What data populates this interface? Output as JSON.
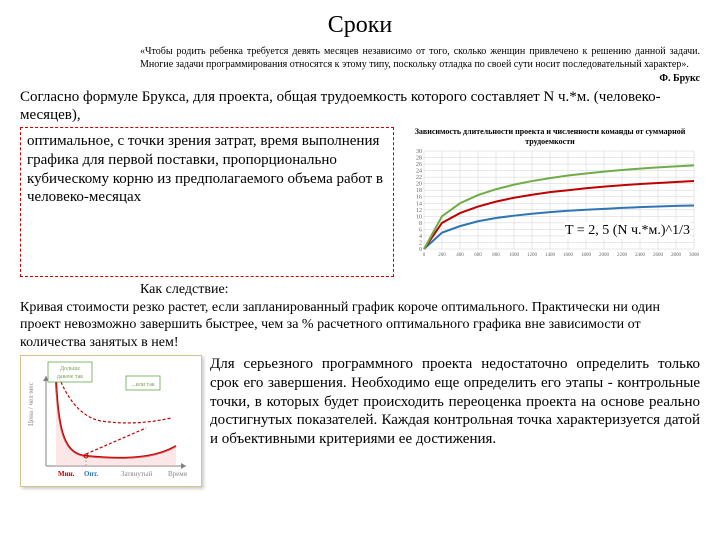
{
  "title": "Сроки",
  "quote": "«Чтобы родить ребенка требуется девять месяцев независимо от того, сколько женщин привлечено к решению данной задачи. Многие задачи программирования относятся к этому типу, поскольку отладка по своей сути носит последовательный характер».",
  "quote_author": "Ф. Брукс",
  "intro": "Согласно формуле Брукса, для проекта, общая трудоемкость которого составляет N ч.*м. (человеко-месяцев),",
  "box_text": "оптимальное, с точки зрения затрат, время выполнения графика для первой поставки, пропорционально кубическому корню из предполагаемого объема работ в человеко-месяцах",
  "chart1": {
    "title": "Зависимость длительности проекта и численности команды от суммарной трудоемкости",
    "ylim": [
      0,
      30
    ],
    "yticks": [
      0,
      2,
      4,
      6,
      8,
      10,
      12,
      14,
      16,
      18,
      20,
      22,
      24,
      26,
      28,
      30
    ],
    "xlim": [
      0,
      3000
    ],
    "xtick_step": 200,
    "series": [
      {
        "color": "#2e75b6",
        "values": [
          0,
          5,
          7,
          8.5,
          9.5,
          10.2,
          10.8,
          11.3,
          11.7,
          12,
          12.3,
          12.6,
          12.8,
          13,
          13.2,
          13.3
        ]
      },
      {
        "color": "#c00000",
        "values": [
          0,
          8,
          11,
          13,
          14.5,
          15.7,
          16.6,
          17.4,
          18,
          18.6,
          19.1,
          19.5,
          19.9,
          20.2,
          20.5,
          20.8
        ]
      },
      {
        "color": "#70ad47",
        "values": [
          0,
          10,
          14,
          16.5,
          18.3,
          19.7,
          20.8,
          21.7,
          22.5,
          23.1,
          23.7,
          24.2,
          24.6,
          25,
          25.3,
          25.6
        ]
      }
    ],
    "grid_color": "#d0d0d0",
    "bg": "#ffffff"
  },
  "formula": "T = 2, 5 (N ч.*м.)^1/3",
  "consequence_head": "Как следствие:",
  "consequence_body": "Кривая стоимости резко растет, если запланированный график короче оптимального. Практически ни один проект невозможно завершить быстрее, чем за % расчетного оптимального графика вне зависимости от количества занятых в нем!",
  "chart2": {
    "bg": "#ffffff",
    "axis_color": "#808080",
    "curve_color": "#c00000",
    "fill_color": "#f4c2c2",
    "dash_color": "#c00000",
    "label_box_border": "#6aa84f",
    "labels": {
      "tl": "Дольше даваче так",
      "tr": "...или так",
      "x1": "Мин.",
      "x2": "Опт.",
      "x3": "Затянутый",
      "x4": "Время"
    },
    "x1_color": "#c00000",
    "x2_color": "#2e75b6"
  },
  "para2": "Для серьезного программного проекта недостаточно определить только срок его завершения. Необходимо еще определить его этапы - контрольные точки, в которых будет происходить переоценка проекта на основе реально достигнутых показателей. Каждая контрольная точка характеризуется датой и объективными критериями ее достижения."
}
